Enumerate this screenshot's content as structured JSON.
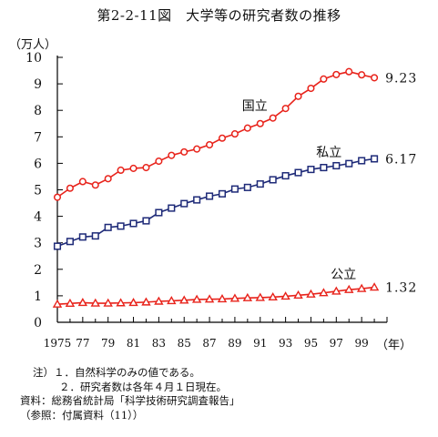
{
  "title": "第2-2-11図　大学等の研究者数の推移",
  "chart_data": {
    "type": "line",
    "ylabel": "（万人）",
    "xlabel": "（年）",
    "xlim": [
      1975,
      2001
    ],
    "ylim": [
      0,
      10
    ],
    "x_ticks": [
      "1975",
      "77",
      "79",
      "81",
      "83",
      "85",
      "87",
      "89",
      "91",
      "93",
      "95",
      "97",
      "99"
    ],
    "y_ticks": [
      "0",
      "1",
      "2",
      "3",
      "4",
      "5",
      "6",
      "7",
      "8",
      "9",
      "10"
    ],
    "x": [
      1975,
      1976,
      1977,
      1978,
      1979,
      1980,
      1981,
      1982,
      1983,
      1984,
      1985,
      1986,
      1987,
      1988,
      1989,
      1990,
      1991,
      1992,
      1993,
      1994,
      1995,
      1996,
      1997,
      1998,
      1999,
      2000
    ],
    "series": [
      {
        "name": "国立",
        "color": "#e8231b",
        "marker": "circle",
        "end_label": "9.23",
        "values": [
          4.72,
          5.06,
          5.31,
          5.18,
          5.42,
          5.74,
          5.81,
          5.84,
          6.08,
          6.3,
          6.43,
          6.54,
          6.7,
          6.95,
          7.11,
          7.33,
          7.5,
          7.71,
          8.07,
          8.53,
          8.83,
          9.18,
          9.35,
          9.46,
          9.34,
          9.23
        ]
      },
      {
        "name": "私立",
        "color": "#1e2a78",
        "marker": "square",
        "end_label": "6.17",
        "values": [
          2.87,
          3.05,
          3.22,
          3.26,
          3.58,
          3.63,
          3.73,
          3.83,
          4.14,
          4.31,
          4.48,
          4.62,
          4.76,
          4.85,
          5.03,
          5.09,
          5.22,
          5.38,
          5.53,
          5.65,
          5.77,
          5.84,
          5.91,
          5.99,
          6.1,
          6.17
        ]
      },
      {
        "name": "公立",
        "color": "#e8231b",
        "marker": "triangle",
        "end_label": "1.32",
        "values": [
          0.68,
          0.71,
          0.74,
          0.72,
          0.72,
          0.73,
          0.74,
          0.76,
          0.79,
          0.81,
          0.83,
          0.86,
          0.87,
          0.88,
          0.9,
          0.92,
          0.93,
          0.95,
          0.98,
          1.02,
          1.06,
          1.11,
          1.17,
          1.23,
          1.27,
          1.32
        ]
      }
    ]
  },
  "notes": {
    "n1": "注）１．自然科学のみの値である。",
    "n2": "２．研究者数は各年４月１日現在。",
    "source": "資料：総務省統計局「科学技術研究調査報告」",
    "ref": "（参照：付属資料（11））"
  }
}
